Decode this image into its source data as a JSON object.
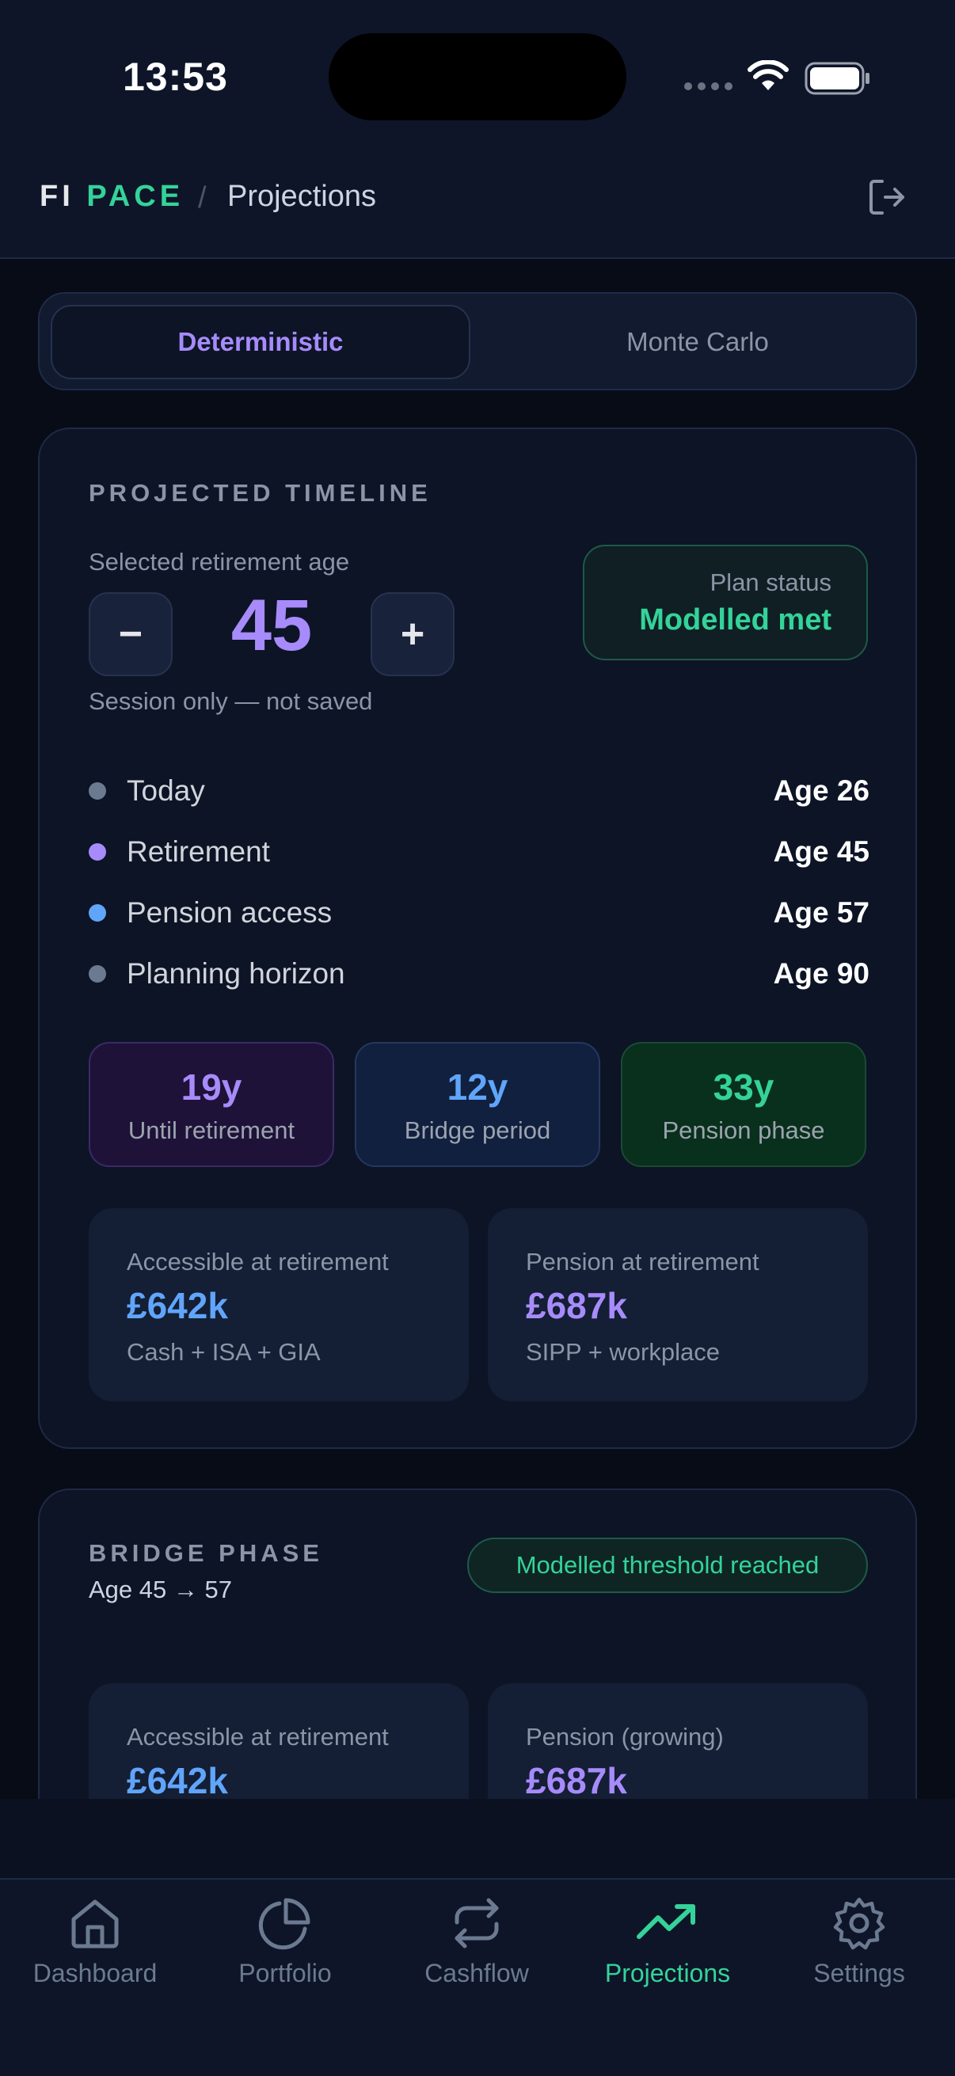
{
  "status_bar": {
    "time": "13:53"
  },
  "header": {
    "brand_first": "FI",
    "brand_second": "PACE",
    "separator": "/",
    "page": "Projections"
  },
  "mode_toggle": {
    "options": [
      {
        "label": "Deterministic",
        "active": true
      },
      {
        "label": "Monte Carlo",
        "active": false
      }
    ]
  },
  "timeline": {
    "title": "PROJECTED TIMELINE",
    "selected_label": "Selected retirement age",
    "minus": "−",
    "plus": "+",
    "age": "45",
    "session_note": "Session only — not saved",
    "plan_status_label": "Plan status",
    "plan_status_value": "Modelled met",
    "milestones": [
      {
        "name": "Today",
        "age": "Age 26",
        "color": "#6b7a90"
      },
      {
        "name": "Retirement",
        "age": "Age 45",
        "color": "#a78bfa"
      },
      {
        "name": "Pension access",
        "age": "Age 57",
        "color": "#60a5fa"
      },
      {
        "name": "Planning horizon",
        "age": "Age 90",
        "color": "#6b7a90"
      }
    ],
    "pills": [
      {
        "value": "19y",
        "label": "Until retirement"
      },
      {
        "value": "12y",
        "label": "Bridge period"
      },
      {
        "value": "33y",
        "label": "Pension phase"
      }
    ],
    "accessible": {
      "label": "Accessible at retirement",
      "amount": "£642k",
      "sub": "Cash + ISA + GIA"
    },
    "pension": {
      "label": "Pension at retirement",
      "amount": "£687k",
      "sub": "SIPP + workplace"
    }
  },
  "bridge": {
    "title": "BRIDGE PHASE",
    "range": "Age 45 → 57",
    "badge": "Modelled threshold reached",
    "accessible": {
      "label": "Accessible at retirement",
      "amount": "£642k"
    },
    "pension": {
      "label": "Pension (growing)",
      "amount": "£687k"
    }
  },
  "tabs": [
    {
      "label": "Dashboard",
      "icon": "home-icon"
    },
    {
      "label": "Portfolio",
      "icon": "pie-chart-icon"
    },
    {
      "label": "Cashflow",
      "icon": "repeat-icon"
    },
    {
      "label": "Projections",
      "icon": "trending-up-icon",
      "active": true
    },
    {
      "label": "Settings",
      "icon": "gear-icon"
    }
  ]
}
